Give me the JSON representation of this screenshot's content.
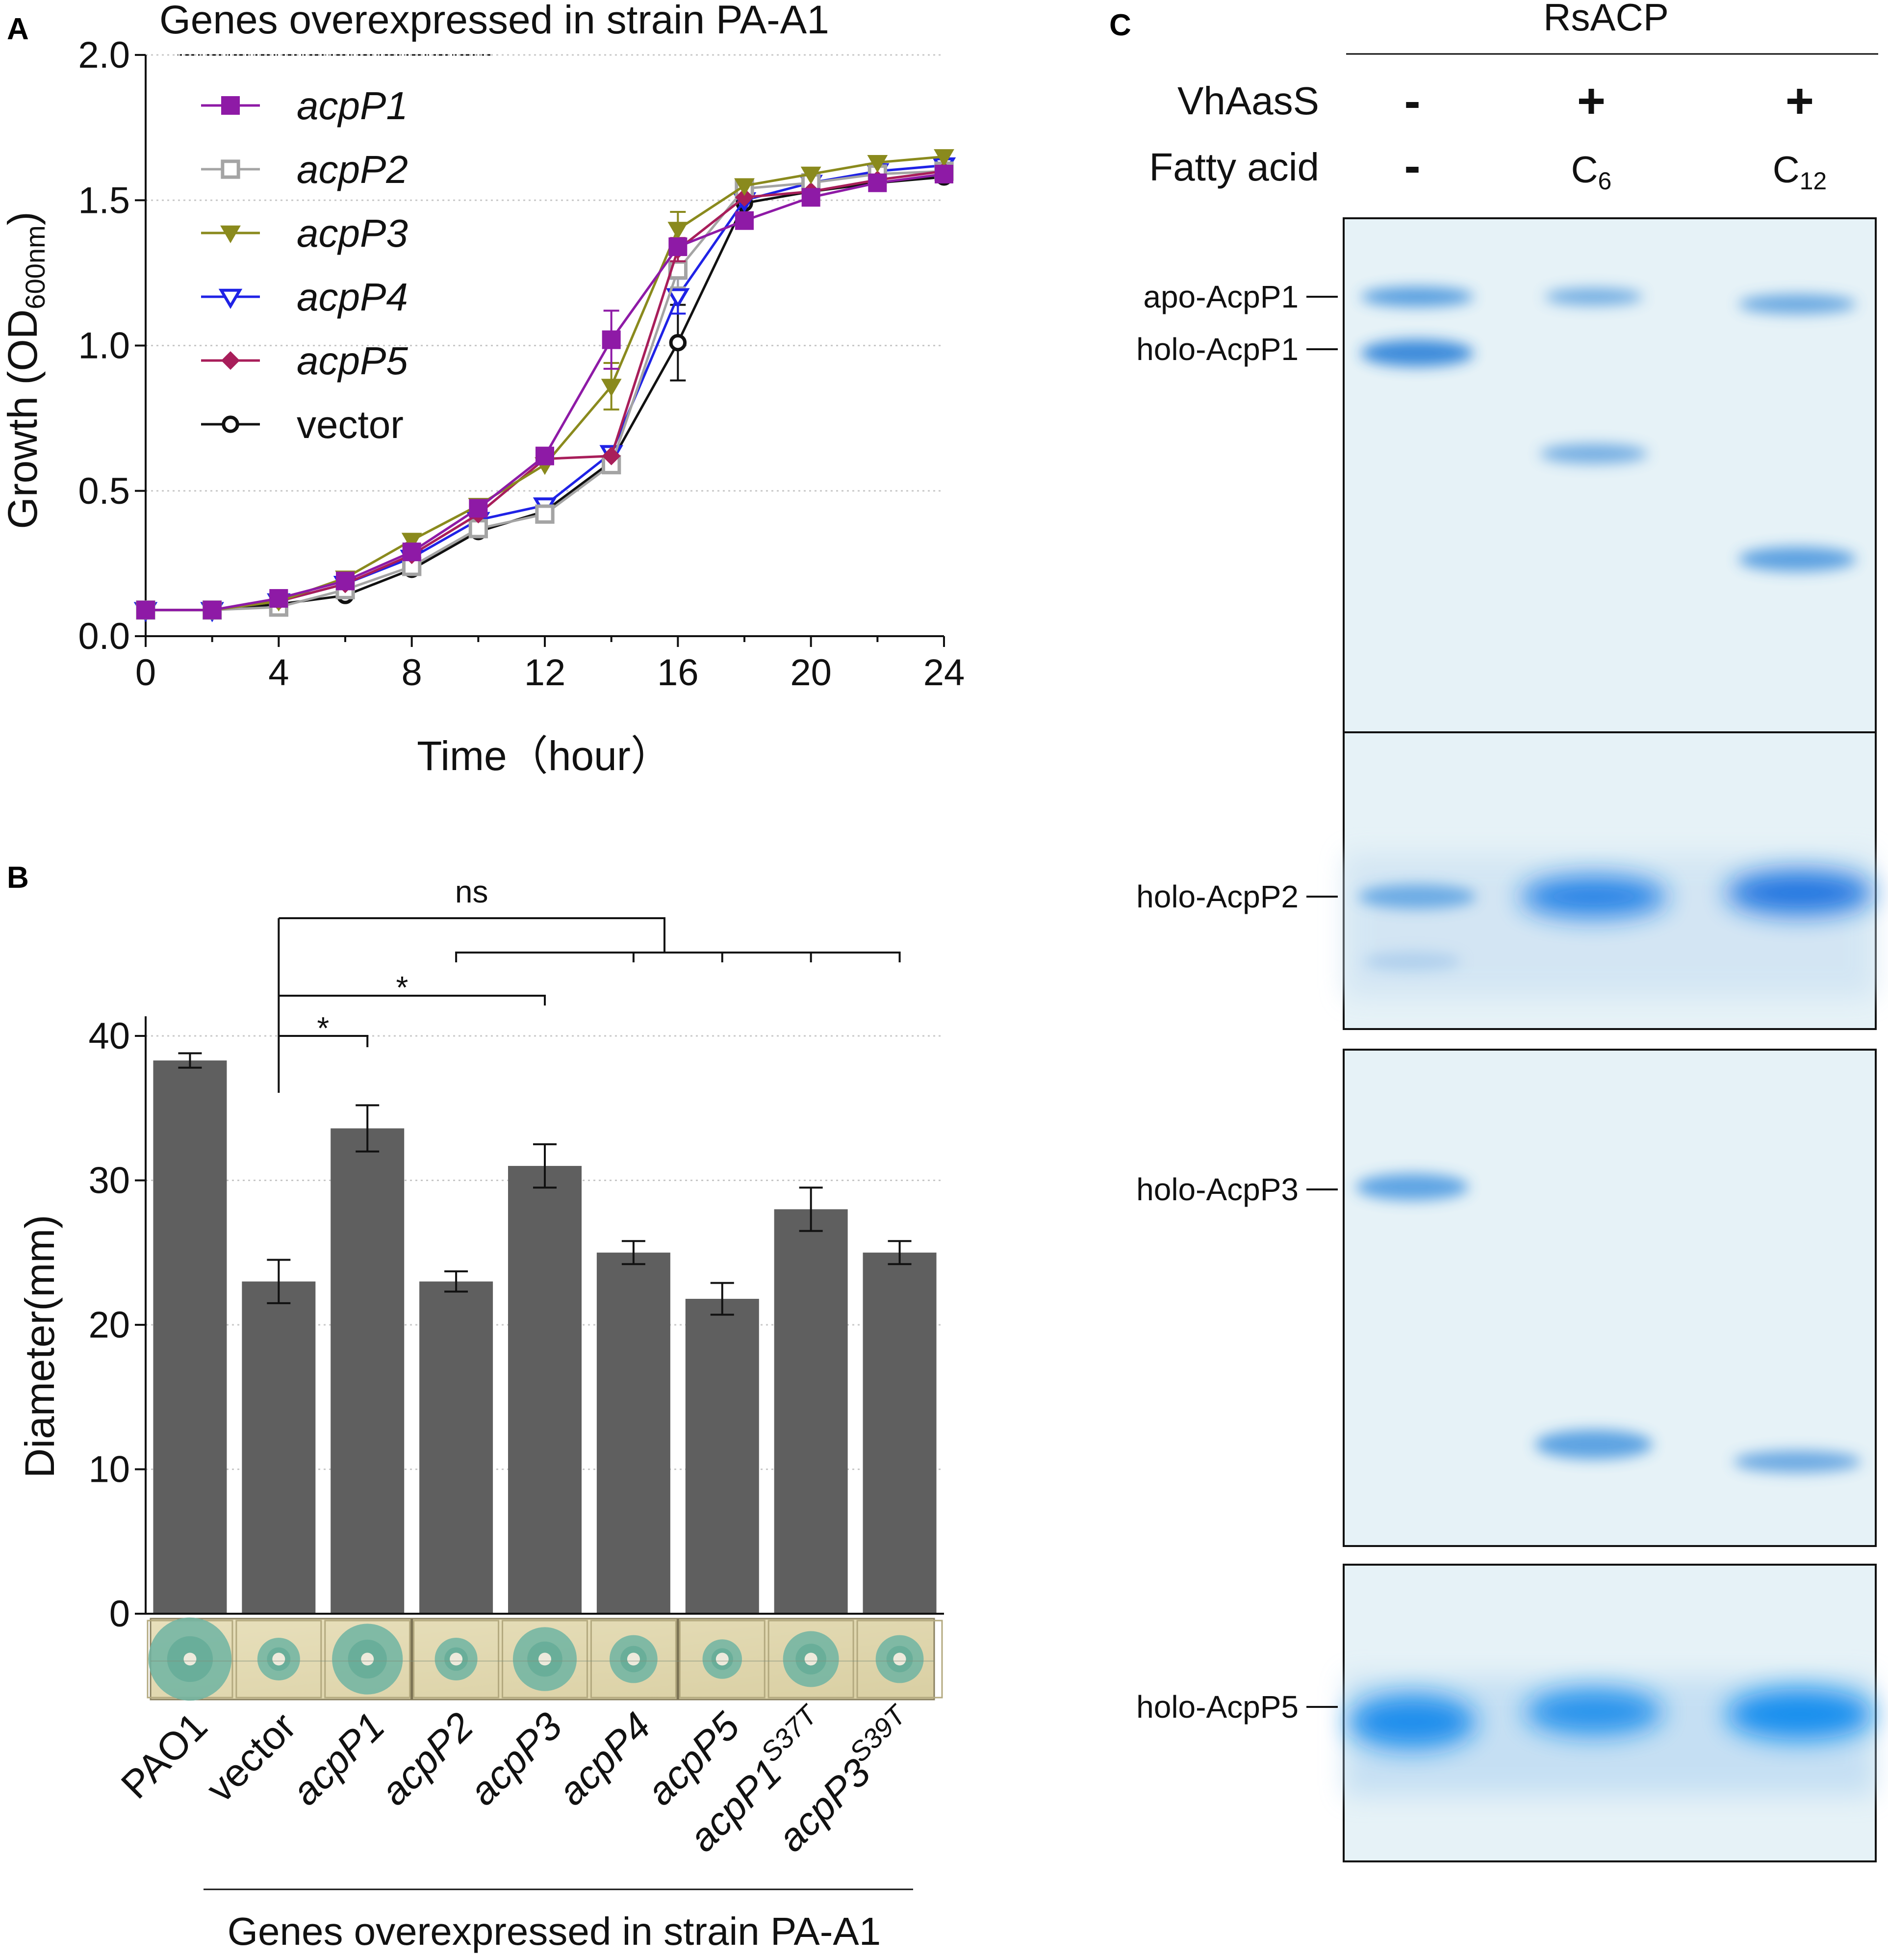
{
  "panel_labels": {
    "a": "A",
    "b": "B",
    "c": "C"
  },
  "chart_data": [
    {
      "panel": "A",
      "type": "line",
      "title": "Genes overexpressed in strain PA-A1",
      "xlabel_main": "Time",
      "xlabel_unit": "（hour）",
      "ylabel_main": "Growth (OD",
      "ylabel_sub": "600nm",
      "ylabel_close": ")",
      "xlim": [
        0,
        24
      ],
      "ylim": [
        0,
        2.0
      ],
      "x_ticks": [
        "0",
        "4",
        "8",
        "12",
        "16",
        "20",
        "24"
      ],
      "y_ticks": [
        "0.0",
        "0.5",
        "1.0",
        "1.5",
        "2.0"
      ],
      "x": [
        0,
        2,
        4,
        6,
        8,
        10,
        12,
        14,
        16,
        18,
        20,
        22,
        24
      ],
      "series": [
        {
          "name": "acpP1",
          "italic": true,
          "color": "#8e1aa6",
          "marker": "square-filled",
          "values": [
            0.09,
            0.09,
            0.13,
            0.19,
            0.29,
            0.44,
            0.62,
            1.02,
            1.34,
            1.43,
            1.51,
            1.56,
            1.59
          ],
          "errors": [
            0,
            0,
            0,
            0,
            0,
            0,
            0.02,
            0.1,
            0.02,
            0.02,
            0,
            0,
            0
          ]
        },
        {
          "name": "acpP2",
          "italic": true,
          "color": "#a4a4a4",
          "marker": "square-open",
          "values": [
            0.09,
            0.09,
            0.1,
            0.16,
            0.24,
            0.37,
            0.42,
            0.59,
            1.26,
            1.54,
            1.56,
            1.59,
            1.6
          ],
          "errors": [
            0,
            0,
            0,
            0,
            0,
            0,
            0,
            0,
            0.06,
            0,
            0,
            0,
            0
          ]
        },
        {
          "name": "acpP3",
          "italic": true,
          "color": "#8a8a1d",
          "marker": "triangle-down",
          "values": [
            0.09,
            0.09,
            0.12,
            0.2,
            0.33,
            0.45,
            0.59,
            0.86,
            1.4,
            1.55,
            1.59,
            1.63,
            1.65
          ],
          "errors": [
            0,
            0,
            0,
            0,
            0,
            0,
            0,
            0.08,
            0.06,
            0,
            0,
            0,
            0
          ]
        },
        {
          "name": "acpP4",
          "italic": true,
          "color": "#1f22e6",
          "marker": "triangle-down-open",
          "values": [
            0.09,
            0.09,
            0.12,
            0.18,
            0.27,
            0.4,
            0.45,
            0.63,
            1.17,
            1.5,
            1.56,
            1.6,
            1.62
          ],
          "errors": [
            0,
            0,
            0,
            0,
            0,
            0,
            0,
            0,
            0.06,
            0,
            0,
            0,
            0
          ]
        },
        {
          "name": "acpP5",
          "italic": true,
          "color": "#a81e5a",
          "marker": "diamond-filled",
          "values": [
            0.09,
            0.09,
            0.12,
            0.18,
            0.28,
            0.42,
            0.61,
            0.62,
            1.33,
            1.51,
            1.53,
            1.57,
            1.6
          ],
          "errors": [
            0,
            0,
            0,
            0,
            0,
            0,
            0,
            0,
            0.04,
            0,
            0,
            0,
            0
          ]
        },
        {
          "name": "vector",
          "italic": false,
          "color": "#111111",
          "marker": "circle-open",
          "values": [
            0.09,
            0.09,
            0.11,
            0.14,
            0.23,
            0.36,
            0.43,
            0.6,
            1.01,
            1.49,
            1.53,
            1.56,
            1.58
          ],
          "errors": [
            0,
            0,
            0,
            0,
            0,
            0,
            0,
            0,
            0.13,
            0,
            0,
            0,
            0
          ]
        }
      ],
      "legend_position": "top-left"
    },
    {
      "panel": "B",
      "type": "bar",
      "ylabel": "Diameter(mm)",
      "ylim": [
        0,
        40
      ],
      "y_ticks": [
        "0",
        "10",
        "20",
        "30",
        "40"
      ],
      "bar_color": "#5f5f5f",
      "xlabel": "Genes overexpressed in strain PA-A1",
      "categories": [
        {
          "main": "PAO1",
          "sup": "",
          "italic": false
        },
        {
          "main": "vector",
          "sup": "",
          "italic": false
        },
        {
          "main": "acpP1",
          "sup": "",
          "italic": true
        },
        {
          "main": "acpP2",
          "sup": "",
          "italic": true
        },
        {
          "main": "acpP3",
          "sup": "",
          "italic": true
        },
        {
          "main": "acpP4",
          "sup": "",
          "italic": true
        },
        {
          "main": "acpP5",
          "sup": "",
          "italic": true
        },
        {
          "main": "acpP1",
          "sup": "S37T",
          "italic": true
        },
        {
          "main": "acpP3",
          "sup": "S39T",
          "italic": true
        }
      ],
      "values": [
        38.3,
        23.0,
        33.6,
        23.0,
        31.0,
        25.0,
        21.8,
        28.0,
        25.0
      ],
      "errors": [
        0.5,
        1.5,
        1.6,
        0.7,
        1.5,
        0.8,
        1.1,
        1.5,
        0.8
      ],
      "significance": [
        {
          "label": "*",
          "from": "vector",
          "to": "acpP1"
        },
        {
          "label": "*",
          "from": "vector",
          "to": "acpP3"
        },
        {
          "label": "ns",
          "from": "vector",
          "to": "acpP2, acpP4, acpP5, acpP1S37T, acpP3S39T"
        }
      ]
    }
  ],
  "gel": {
    "header": "RsACP",
    "row1_label": "VhAasS",
    "row2_label": "Fatty acid",
    "lanes": [
      {
        "vhaass": "-",
        "fa_main": "-",
        "fa_sub": ""
      },
      {
        "vhaass": "+",
        "fa_main": "C",
        "fa_sub": "6"
      },
      {
        "vhaass": "+",
        "fa_main": "C",
        "fa_sub": "12"
      }
    ],
    "panels": [
      {
        "labels": [
          "apo-AcpP1",
          "holo-AcpP1"
        ]
      },
      {
        "labels": [
          "holo-AcpP2"
        ]
      },
      {
        "labels": [
          "holo-AcpP3"
        ]
      },
      {
        "labels": [
          "holo-AcpP5"
        ]
      }
    ]
  }
}
